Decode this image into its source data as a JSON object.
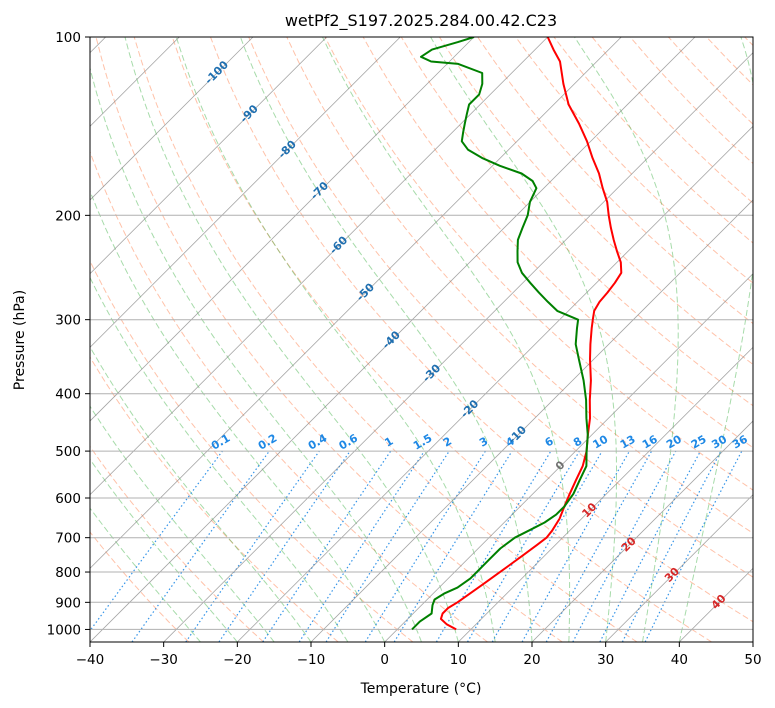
{
  "chart_data": {
    "type": "line",
    "title": "wetPf2_S197.2025.284.00.42.C23",
    "xlabel": "Temperature (°C)",
    "ylabel": "Pressure (hPa)",
    "xlim": [
      -40,
      50
    ],
    "ylim": [
      1050,
      100
    ],
    "y_scale": "log",
    "skew_degrees": 45,
    "grid": true,
    "x_ticks": [
      -40,
      -30,
      -20,
      -10,
      0,
      10,
      20,
      30,
      40,
      50
    ],
    "x_tick_labels": [
      "−40",
      "−30",
      "−20",
      "−10",
      "0",
      "10",
      "20",
      "30",
      "40",
      "50"
    ],
    "y_ticks": [
      100,
      200,
      300,
      400,
      500,
      600,
      700,
      800,
      900,
      1000
    ],
    "y_tick_labels": [
      "100",
      "200",
      "300",
      "400",
      "500",
      "600",
      "700",
      "800",
      "900",
      "1000"
    ],
    "series": [
      {
        "color": "#ff0000",
        "points": [
          [
            1000,
            8.0
          ],
          [
            980,
            6.0
          ],
          [
            960,
            4.5
          ],
          [
            940,
            4.0
          ],
          [
            920,
            4.0
          ],
          [
            900,
            4.5
          ],
          [
            870,
            5.0
          ],
          [
            840,
            5.5
          ],
          [
            810,
            6.0
          ],
          [
            780,
            6.5
          ],
          [
            750,
            7.0
          ],
          [
            720,
            7.5
          ],
          [
            700,
            7.8
          ],
          [
            680,
            7.6
          ],
          [
            650,
            7.0
          ],
          [
            620,
            6.0
          ],
          [
            590,
            5.0
          ],
          [
            560,
            4.0
          ],
          [
            530,
            3.0
          ],
          [
            500,
            1.5
          ],
          [
            470,
            -0.5
          ],
          [
            440,
            -2.5
          ],
          [
            410,
            -5.0
          ],
          [
            380,
            -7.5
          ],
          [
            350,
            -10.5
          ],
          [
            330,
            -12.5
          ],
          [
            310,
            -14.5
          ],
          [
            300,
            -15.5
          ],
          [
            290,
            -16.5
          ],
          [
            280,
            -17.0
          ],
          [
            270,
            -17.2
          ],
          [
            260,
            -17.5
          ],
          [
            250,
            -18.0
          ],
          [
            240,
            -19.5
          ],
          [
            230,
            -21.5
          ],
          [
            220,
            -23.5
          ],
          [
            210,
            -25.5
          ],
          [
            200,
            -27.5
          ],
          [
            190,
            -29.5
          ],
          [
            180,
            -32.0
          ],
          [
            170,
            -34.5
          ],
          [
            160,
            -37.5
          ],
          [
            150,
            -40.5
          ],
          [
            140,
            -44.0
          ],
          [
            130,
            -48.0
          ],
          [
            120,
            -51.5
          ],
          [
            110,
            -55.0
          ],
          [
            105,
            -57.5
          ],
          [
            100,
            -60.0
          ]
        ]
      },
      {
        "color": "#008000",
        "points": [
          [
            1000,
            2.0
          ],
          [
            970,
            2.0
          ],
          [
            940,
            2.5
          ],
          [
            910,
            1.5
          ],
          [
            890,
            1.0
          ],
          [
            870,
            1.5
          ],
          [
            850,
            2.5
          ],
          [
            820,
            3.0
          ],
          [
            790,
            3.0
          ],
          [
            760,
            3.0
          ],
          [
            730,
            3.0
          ],
          [
            700,
            3.5
          ],
          [
            680,
            4.5
          ],
          [
            660,
            5.5
          ],
          [
            640,
            6.0
          ],
          [
            620,
            6.0
          ],
          [
            590,
            5.5
          ],
          [
            560,
            4.5
          ],
          [
            530,
            3.5
          ],
          [
            500,
            1.5
          ],
          [
            470,
            -0.5
          ],
          [
            440,
            -3.0
          ],
          [
            410,
            -5.5
          ],
          [
            380,
            -8.5
          ],
          [
            350,
            -12.0
          ],
          [
            330,
            -14.5
          ],
          [
            310,
            -16.5
          ],
          [
            300,
            -17.5
          ],
          [
            295,
            -19.5
          ],
          [
            290,
            -21.5
          ],
          [
            280,
            -24.0
          ],
          [
            270,
            -26.5
          ],
          [
            260,
            -29.0
          ],
          [
            250,
            -31.5
          ],
          [
            240,
            -33.5
          ],
          [
            230,
            -35.0
          ],
          [
            220,
            -36.5
          ],
          [
            210,
            -37.5
          ],
          [
            200,
            -38.5
          ],
          [
            190,
            -40.0
          ],
          [
            180,
            -41.0
          ],
          [
            175,
            -42.5
          ],
          [
            170,
            -45.0
          ],
          [
            165,
            -49.0
          ],
          [
            160,
            -52.5
          ],
          [
            155,
            -55.5
          ],
          [
            150,
            -57.5
          ],
          [
            145,
            -58.5
          ],
          [
            140,
            -59.5
          ],
          [
            135,
            -60.5
          ],
          [
            130,
            -61.5
          ],
          [
            125,
            -61.5
          ],
          [
            120,
            -62.5
          ],
          [
            115,
            -64.0
          ],
          [
            111,
            -68.5
          ],
          [
            110,
            -72.5
          ],
          [
            108,
            -74.5
          ],
          [
            105,
            -74.0
          ],
          [
            102,
            -71.5
          ],
          [
            100,
            -70.0
          ]
        ]
      }
    ],
    "reference_lines": {
      "dry_adiabats_colour": "#ff9a70",
      "moist_adiabats_colour": "#3cb043",
      "mixing_ratio_colour": "#1e88e5",
      "isotherm_colour": "#808080",
      "isotherm_labels": [
        "-100",
        "-90",
        "-80",
        "-70",
        "-60",
        "-50",
        "-40",
        "-30",
        "-20",
        "-10",
        "0",
        "10",
        "20",
        "30",
        "40"
      ],
      "mixing_ratio_labels": [
        "0.1",
        "0.2",
        "0.4",
        "0.6",
        "1",
        "1.5",
        "2",
        "3",
        "4",
        "6",
        "8",
        "10",
        "13",
        "16",
        "20",
        "25",
        "30",
        "36"
      ]
    }
  }
}
